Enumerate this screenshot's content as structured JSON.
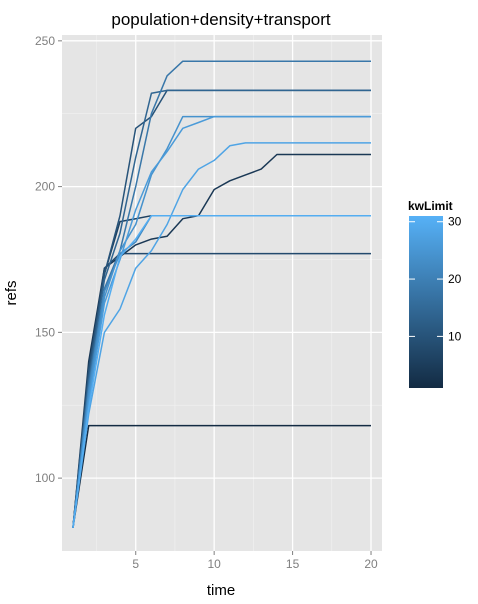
{
  "chart_data": {
    "type": "line",
    "title": "population+density+transport",
    "xlabel": "time",
    "ylabel": "refs",
    "xlim": [
      0.3,
      20.7
    ],
    "ylim": [
      75,
      252
    ],
    "xticks": [
      5,
      10,
      15,
      20
    ],
    "yticks": [
      100,
      150,
      200,
      250
    ],
    "grid": true,
    "panel_background": "#e5e5e5",
    "grid_color": "#ffffff",
    "legend": {
      "title": "kwLimit",
      "position": "right",
      "type": "colorbar",
      "range": [
        1,
        31
      ],
      "ticks": [
        10,
        20,
        30
      ],
      "low_color": "#132b43",
      "high_color": "#56b1f7"
    },
    "series": [
      {
        "kwLimit": 1,
        "x": [
          1,
          2,
          3,
          4,
          5,
          6,
          7,
          8,
          9,
          10,
          11,
          12,
          13,
          14,
          15,
          16,
          17,
          18,
          19,
          20
        ],
        "values": [
          83,
          118,
          118,
          118,
          118,
          118,
          118,
          118,
          118,
          118,
          118,
          118,
          118,
          118,
          118,
          118,
          118,
          118,
          118,
          118
        ]
      },
      {
        "kwLimit": 4,
        "x": [
          1,
          2,
          3,
          4,
          5,
          6,
          7,
          8,
          9,
          10,
          11,
          12,
          13,
          14,
          15,
          16,
          17,
          18,
          19,
          20
        ],
        "values": [
          83,
          140,
          172,
          176,
          180,
          182,
          183,
          189,
          190,
          199,
          202,
          204,
          206,
          211,
          211,
          211,
          211,
          211,
          211,
          211
        ]
      },
      {
        "kwLimit": 6,
        "x": [
          1,
          2,
          3,
          4,
          5,
          6,
          7,
          8,
          9,
          10,
          11,
          12,
          13,
          14,
          15,
          16,
          17,
          18,
          19,
          20
        ],
        "values": [
          83,
          138,
          170,
          188,
          189,
          190,
          190,
          190,
          190,
          190,
          190,
          190,
          190,
          190,
          190,
          190,
          190,
          190,
          190,
          190
        ]
      },
      {
        "kwLimit": 8,
        "x": [
          1,
          2,
          3,
          4,
          5,
          6,
          7,
          8,
          9,
          10,
          11,
          12,
          13,
          14,
          15,
          16,
          17,
          18,
          19,
          20
        ],
        "values": [
          83,
          136,
          172,
          177,
          177,
          177,
          177,
          177,
          177,
          177,
          177,
          177,
          177,
          177,
          177,
          177,
          177,
          177,
          177,
          177
        ]
      },
      {
        "kwLimit": 10,
        "x": [
          1,
          2,
          3,
          4,
          5,
          6,
          7,
          8,
          9,
          10,
          11,
          12,
          13,
          14,
          15,
          16,
          17,
          18,
          19,
          20
        ],
        "values": [
          83,
          137,
          170,
          190,
          220,
          224,
          233,
          233,
          233,
          233,
          233,
          233,
          233,
          233,
          233,
          233,
          233,
          233,
          233,
          233
        ]
      },
      {
        "kwLimit": 14,
        "x": [
          1,
          2,
          3,
          4,
          5,
          6,
          7,
          8,
          9,
          10,
          11,
          12,
          13,
          14,
          15,
          16,
          17,
          18,
          19,
          20
        ],
        "values": [
          83,
          134,
          168,
          184,
          210,
          232,
          233,
          233,
          233,
          233,
          233,
          233,
          233,
          233,
          233,
          233,
          233,
          233,
          233,
          233
        ]
      },
      {
        "kwLimit": 18,
        "x": [
          1,
          2,
          3,
          4,
          5,
          6,
          7,
          8,
          9,
          10,
          11,
          12,
          13,
          14,
          15,
          16,
          17,
          18,
          19,
          20
        ],
        "values": [
          83,
          132,
          165,
          178,
          200,
          225,
          238,
          243,
          243,
          243,
          243,
          243,
          243,
          243,
          243,
          243,
          243,
          243,
          243,
          243
        ]
      },
      {
        "kwLimit": 22,
        "x": [
          1,
          2,
          3,
          4,
          5,
          6,
          7,
          8,
          9,
          10,
          11,
          12,
          13,
          14,
          15,
          16,
          17,
          18,
          19,
          20
        ],
        "values": [
          83,
          130,
          164,
          177,
          181,
          190,
          190,
          190,
          190,
          190,
          190,
          190,
          190,
          190,
          190,
          190,
          190,
          190,
          190,
          190
        ]
      },
      {
        "kwLimit": 24,
        "x": [
          1,
          2,
          3,
          4,
          5,
          6,
          7,
          8,
          9,
          10,
          11,
          12,
          13,
          14,
          15,
          16,
          17,
          18,
          19,
          20
        ],
        "values": [
          83,
          128,
          162,
          178,
          187,
          204,
          213,
          224,
          224,
          224,
          224,
          224,
          224,
          224,
          224,
          224,
          224,
          224,
          224,
          224
        ]
      },
      {
        "kwLimit": 26,
        "x": [
          1,
          2,
          3,
          4,
          5,
          6,
          7,
          8,
          9,
          10,
          11,
          12,
          13,
          14,
          15,
          16,
          17,
          18,
          19,
          20
        ],
        "values": [
          83,
          126,
          160,
          175,
          192,
          205,
          212,
          220,
          222,
          224,
          224,
          224,
          224,
          224,
          224,
          224,
          224,
          224,
          224,
          224
        ]
      },
      {
        "kwLimit": 28,
        "x": [
          1,
          2,
          3,
          4,
          5,
          6,
          7,
          8,
          9,
          10,
          11,
          12,
          13,
          14,
          15,
          16,
          17,
          18,
          19,
          20
        ],
        "values": [
          83,
          122,
          150,
          158,
          172,
          178,
          187,
          199,
          206,
          209,
          214,
          215,
          215,
          215,
          215,
          215,
          215,
          215,
          215,
          215
        ]
      },
      {
        "kwLimit": 30,
        "x": [
          1,
          2,
          3,
          4,
          5,
          6,
          7,
          8,
          9,
          10,
          11,
          12,
          13,
          14,
          15,
          16,
          17,
          18,
          19,
          20
        ],
        "values": [
          83,
          124,
          156,
          176,
          182,
          190,
          190,
          190,
          190,
          190,
          190,
          190,
          190,
          190,
          190,
          190,
          190,
          190,
          190,
          190
        ]
      }
    ]
  }
}
